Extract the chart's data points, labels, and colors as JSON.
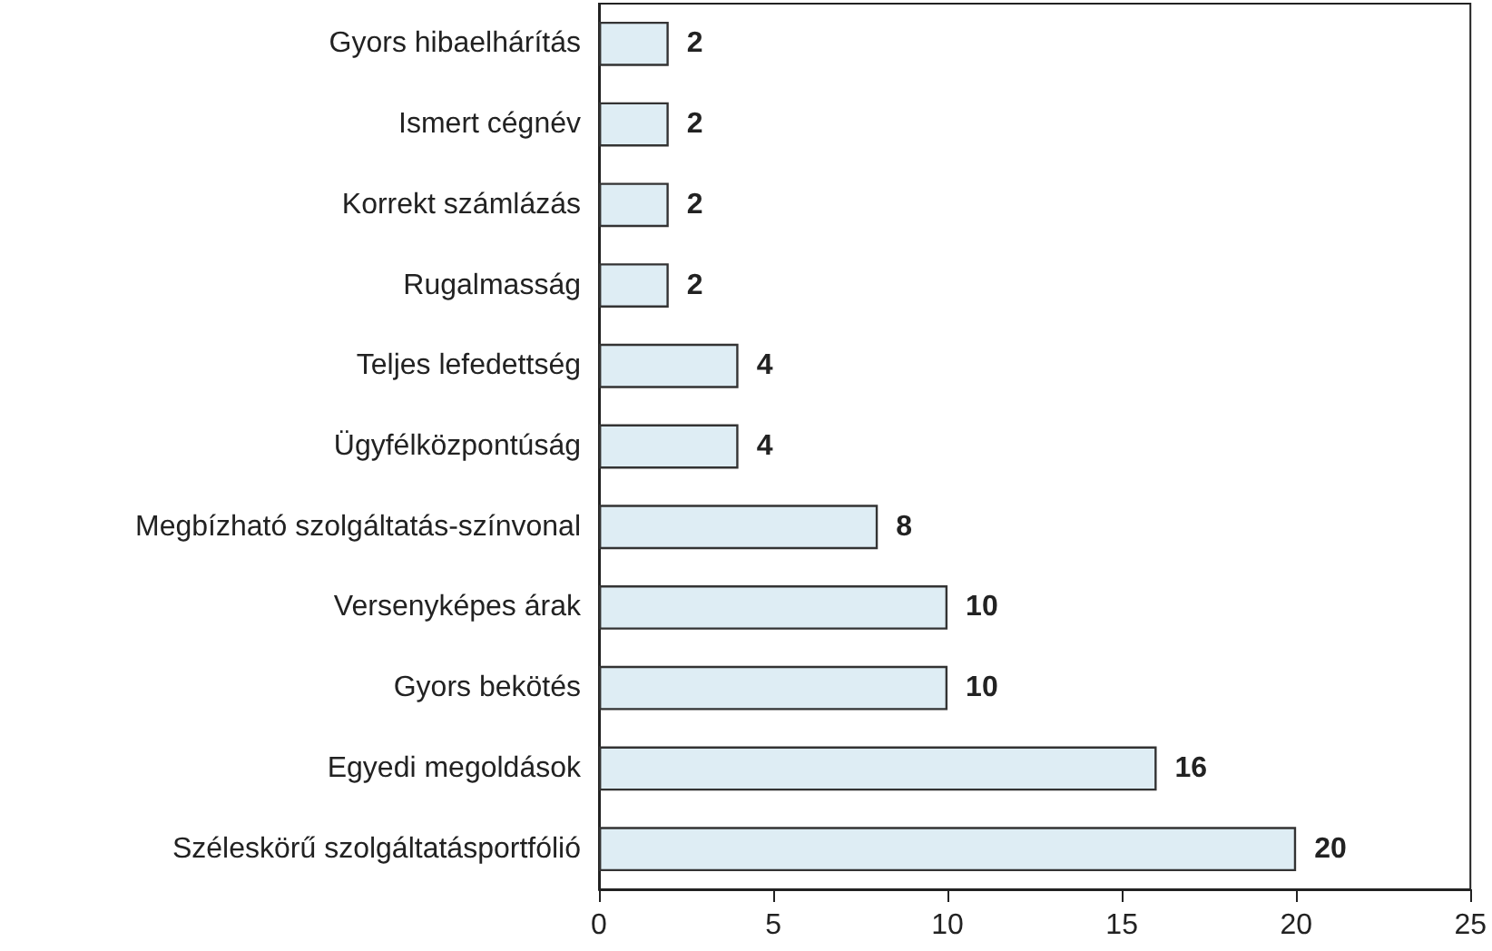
{
  "chart_data": {
    "type": "bar",
    "orientation": "horizontal",
    "categories": [
      "Gyors hibaelhárítás",
      "Ismert cégnév",
      "Korrekt számlázás",
      "Rugalmasság",
      "Teljes lefedettség",
      "Ügyfélközpontúság",
      "Megbízható szolgáltatás-színvonal",
      "Versenyképes árak",
      "Gyors bekötés",
      "Egyedi megoldások",
      "Széleskörű szolgáltatásportfólió"
    ],
    "values": [
      2,
      2,
      2,
      2,
      4,
      4,
      8,
      10,
      10,
      16,
      20
    ],
    "color": "#deedf4",
    "xlim": [
      0,
      25
    ],
    "xticks": [
      0,
      5,
      10,
      15,
      20,
      25
    ],
    "grid": false,
    "data_labels": true
  }
}
